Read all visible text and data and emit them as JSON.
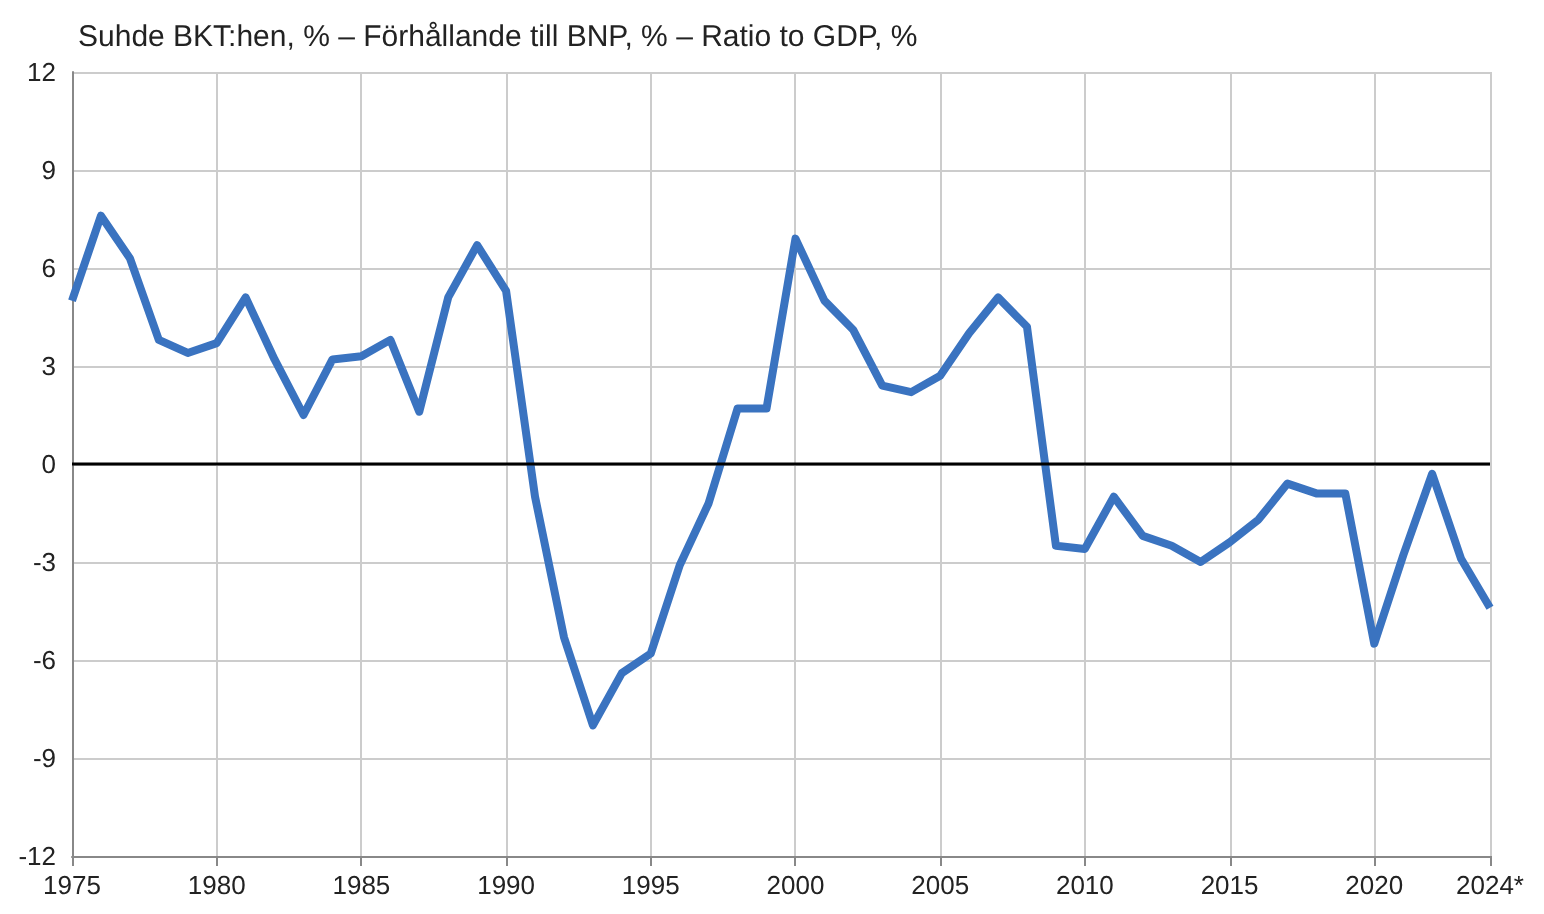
{
  "chart_data": {
    "type": "line",
    "title": "Suhde BKT:hen, % – Förhållande till BNP, % – Ratio to GDP, %",
    "x": [
      1975,
      1976,
      1977,
      1978,
      1979,
      1980,
      1981,
      1982,
      1983,
      1984,
      1985,
      1986,
      1987,
      1988,
      1989,
      1990,
      1991,
      1992,
      1993,
      1994,
      1995,
      1996,
      1997,
      1998,
      1999,
      2000,
      2001,
      2002,
      2003,
      2004,
      2005,
      2006,
      2007,
      2008,
      2009,
      2010,
      2011,
      2012,
      2013,
      2014,
      2015,
      2016,
      2017,
      2018,
      2019,
      2020,
      2021,
      2022,
      2023,
      2024
    ],
    "series": [
      {
        "color": "#3a73c0",
        "values": [
          5.0,
          7.6,
          6.3,
          3.8,
          3.4,
          3.7,
          5.1,
          3.2,
          1.5,
          3.2,
          3.3,
          3.8,
          1.6,
          5.1,
          6.7,
          5.3,
          -1.0,
          -5.3,
          -8.0,
          -6.4,
          -5.8,
          -3.1,
          -1.2,
          1.7,
          1.7,
          6.9,
          5.0,
          4.1,
          2.4,
          2.2,
          2.7,
          4.0,
          5.1,
          4.2,
          -2.5,
          -2.6,
          -1.0,
          -2.2,
          -2.5,
          -3.0,
          -2.4,
          -1.7,
          -0.6,
          -0.9,
          -0.9,
          -5.5,
          -2.8,
          -0.3,
          -2.9,
          -4.4
        ]
      }
    ],
    "xlim": [
      1975,
      2024
    ],
    "xticks": [
      1975,
      1980,
      1985,
      1990,
      1995,
      2000,
      2005,
      2010,
      2015,
      2020,
      {
        "value": 2024,
        "label": "2024*"
      }
    ],
    "ylim": [
      -12,
      12
    ],
    "yticks": [
      -12,
      -9,
      -6,
      -3,
      0,
      3,
      6,
      9,
      12
    ],
    "ref_lines": [
      {
        "axis": "y",
        "value": 0,
        "color": "#000000"
      }
    ],
    "grid": true,
    "marker": "none",
    "line_style": "solid"
  }
}
